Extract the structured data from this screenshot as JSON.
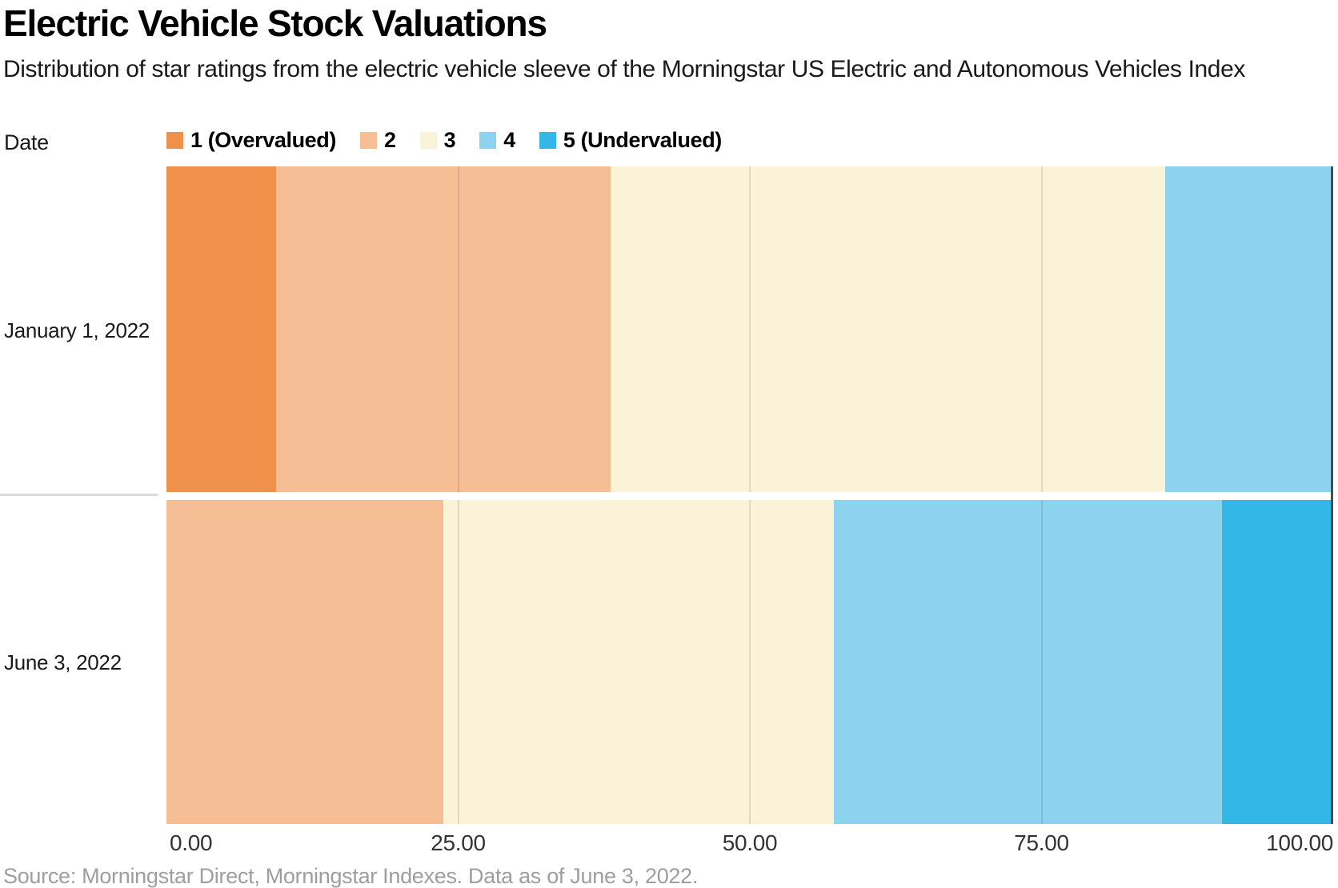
{
  "header": {
    "title": "Electric Vehicle Stock Valuations",
    "subtitle": "Distribution of star ratings from the electric vehicle sleeve of the Morningstar US Electric and Autonomous Vehicles Index"
  },
  "legend": {
    "axis_label": "Date"
  },
  "chart_data": {
    "type": "bar",
    "stacked": true,
    "orientation": "horizontal",
    "unit": "percent",
    "title": "Electric Vehicle Stock Valuations",
    "subtitle": "Distribution of star ratings from the electric vehicle sleeve of the Morningstar US Electric and Autonomous Vehicles Index",
    "ylabel": "Date",
    "categories": [
      "January 1, 2022",
      "June 3, 2022"
    ],
    "series": [
      {
        "name": "1 (Overvalued)",
        "color": "#F0914B",
        "values": [
          9.4,
          0
        ]
      },
      {
        "name": "2",
        "color": "#F6BE95",
        "values": [
          28.7,
          23.7
        ]
      },
      {
        "name": "3",
        "color": "#FAF3D8",
        "values": [
          47.5,
          33.5
        ]
      },
      {
        "name": "4",
        "color": "#8BD3EE",
        "values": [
          14.4,
          33.3
        ]
      },
      {
        "name": "5 (Undervalued)",
        "color": "#32B7E6",
        "values": [
          0,
          9.5
        ]
      }
    ],
    "x_axis": {
      "range": [
        0,
        100
      ],
      "tick_labels": [
        "0.00",
        "25.00",
        "50.00",
        "75.00",
        "100.00"
      ],
      "tick_values": [
        0,
        25,
        50,
        75,
        100
      ],
      "gridlines": [
        25,
        50,
        75
      ],
      "end_axis_line_value": 100
    },
    "legend_position": "top"
  },
  "footer": {
    "source": "Source: Morningstar Direct, Morningstar Indexes. Data as of June 3, 2022."
  }
}
